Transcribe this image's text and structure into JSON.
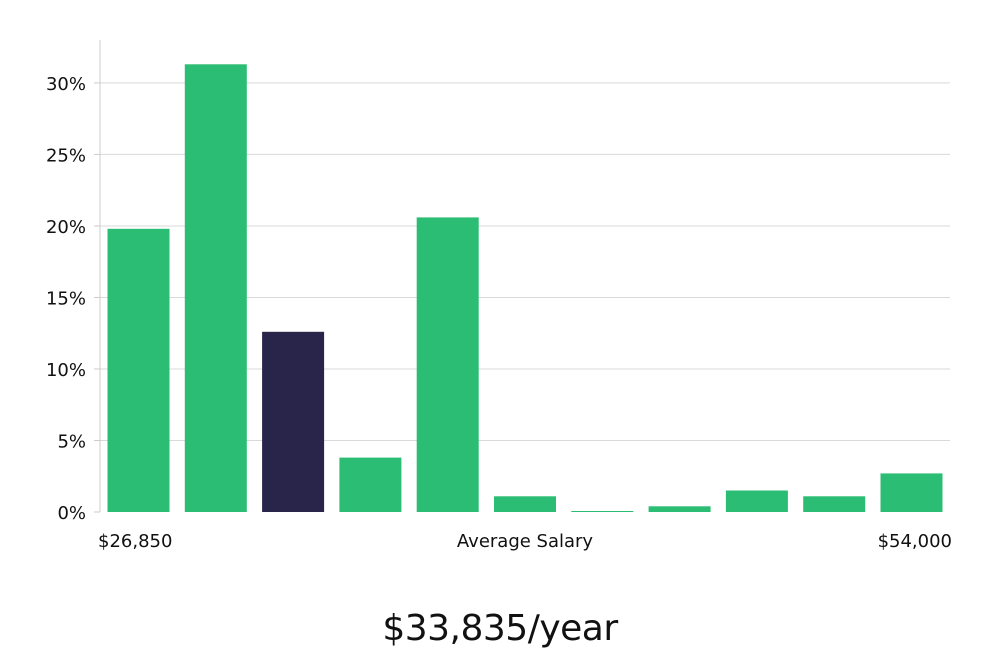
{
  "summary": "$33,835/year",
  "colors": {
    "bar": "#2bbd73",
    "highlight": "#29244a",
    "grid": "#d9d9d9",
    "axis": "#cccccc"
  },
  "chart_data": {
    "type": "bar",
    "title": "",
    "ylabel": "",
    "xlabel": "Average Salary",
    "x_min_label": "$26,850",
    "x_max_label": "$54,000",
    "ylim": [
      0,
      33
    ],
    "yticks": [
      0,
      5,
      10,
      15,
      20,
      25,
      30
    ],
    "ytick_labels": [
      "0%",
      "5%",
      "10%",
      "15%",
      "20%",
      "25%",
      "30%"
    ],
    "values": [
      19.8,
      31.3,
      12.6,
      3.8,
      20.6,
      1.1,
      0.05,
      0.4,
      1.5,
      1.1,
      2.7
    ],
    "highlight_index": 2,
    "grid": true,
    "legend": "none"
  }
}
